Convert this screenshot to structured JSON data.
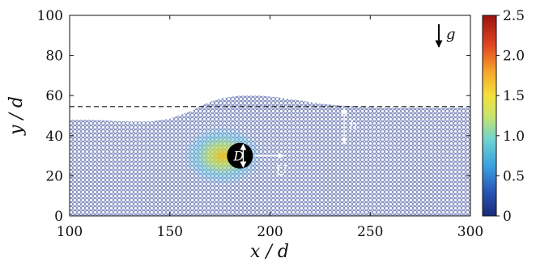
{
  "chart_data": {
    "type": "scatter",
    "description_free": true,
    "xlabel": "x / d",
    "ylabel": "y / d",
    "xlim": [
      100,
      300
    ],
    "ylim": [
      0,
      100
    ],
    "xticks": [
      "100",
      "150",
      "200",
      "250",
      "300"
    ],
    "yticks": [
      "0",
      "20",
      "40",
      "60",
      "80",
      "100"
    ],
    "colorbar": {
      "range": [
        0,
        2.5
      ],
      "ticks": [
        "0",
        "0.5",
        "1.0",
        "1.5",
        "2.0",
        "2.5"
      ],
      "colormap": "jet"
    },
    "annotations": {
      "gravity_label": "g",
      "depth_label": "h",
      "diameter_label": "D",
      "velocity_label": "U"
    },
    "reference_level_y": 54.5,
    "intruder": {
      "x": 185,
      "y": 30
    },
    "free_surface_profile": [
      [
        100,
        48
      ],
      [
        110,
        48
      ],
      [
        120,
        47.5
      ],
      [
        130,
        47
      ],
      [
        140,
        47
      ],
      [
        150,
        48.5
      ],
      [
        160,
        52
      ],
      [
        168,
        56
      ],
      [
        175,
        58.5
      ],
      [
        185,
        60
      ],
      [
        195,
        60
      ],
      [
        205,
        59
      ],
      [
        215,
        57.5
      ],
      [
        225,
        56
      ],
      [
        235,
        55
      ],
      [
        245,
        54.5
      ],
      [
        255,
        54
      ],
      [
        265,
        54
      ],
      [
        275,
        54
      ],
      [
        285,
        54
      ],
      [
        300,
        54
      ]
    ]
  }
}
